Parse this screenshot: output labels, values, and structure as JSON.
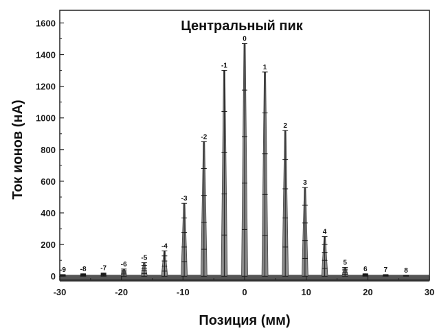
{
  "chart_data": {
    "type": "bar",
    "title": "Центральный пик",
    "xlabel": "Позиция (мм)",
    "ylabel": "Ток ионов (нА)",
    "xlim": [
      -30,
      30
    ],
    "ylim": [
      -25,
      1680
    ],
    "xticks": [
      -30,
      -20,
      -10,
      0,
      10,
      20,
      30
    ],
    "yticks": [
      0,
      200,
      400,
      600,
      800,
      1000,
      1200,
      1400,
      1600
    ],
    "grid": false,
    "peak_width_mm": 1.0,
    "series": [
      {
        "peaks": [
          {
            "label": "-9",
            "x": -29.5,
            "y": 10
          },
          {
            "label": "-8",
            "x": -26.2,
            "y": 15
          },
          {
            "label": "-7",
            "x": -22.9,
            "y": 20
          },
          {
            "label": "-6",
            "x": -19.6,
            "y": 45
          },
          {
            "label": "-5",
            "x": -16.3,
            "y": 85
          },
          {
            "label": "-4",
            "x": -13.0,
            "y": 160
          },
          {
            "label": "-3",
            "x": -9.8,
            "y": 460
          },
          {
            "label": "-2",
            "x": -6.6,
            "y": 850
          },
          {
            "label": "-1",
            "x": -3.3,
            "y": 1300
          },
          {
            "label": "0",
            "x": 0.0,
            "y": 1470
          },
          {
            "label": "1",
            "x": 3.3,
            "y": 1290
          },
          {
            "label": "2",
            "x": 6.6,
            "y": 920
          },
          {
            "label": "3",
            "x": 9.8,
            "y": 560
          },
          {
            "label": "4",
            "x": 13.0,
            "y": 250
          },
          {
            "label": "5",
            "x": 16.3,
            "y": 55
          },
          {
            "label": "6",
            "x": 19.6,
            "y": 15
          },
          {
            "label": "7",
            "x": 22.9,
            "y": 10
          },
          {
            "label": "8",
            "x": 26.2,
            "y": 5
          }
        ]
      }
    ]
  },
  "colors": {
    "peak_fill": "#8a8a8a",
    "peak_edge": "#444444",
    "baseline": "#555555",
    "errorbar": "#1a1a1a"
  }
}
